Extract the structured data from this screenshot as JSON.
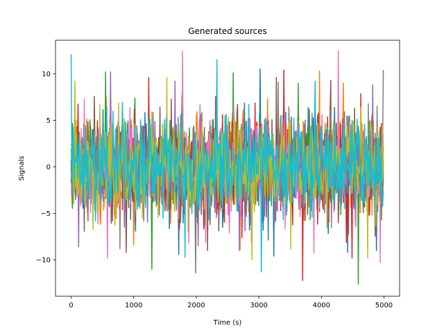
{
  "chart_data": {
    "type": "line",
    "title": "Generated sources",
    "xlabel": "Time (s)",
    "ylabel": "Signals",
    "xlim": [
      -250,
      5250
    ],
    "ylim": [
      -13.9,
      13.6
    ],
    "x_ticks": [
      0,
      1000,
      2000,
      3000,
      4000,
      5000
    ],
    "x_tick_labels": [
      "0",
      "1000",
      "2000",
      "3000",
      "4000",
      "5000"
    ],
    "y_ticks": [
      -10,
      -5,
      0,
      5,
      10
    ],
    "y_tick_labels": [
      "−10",
      "−5",
      "0",
      "5",
      "10"
    ],
    "grid": false,
    "legend": "none",
    "n_points": 5000,
    "series": [
      {
        "color": "#1f77b4",
        "std": 2.5,
        "peaks": [
          [
            3020,
            10.5
          ],
          [
            1720,
            -9.4
          ],
          [
            3240,
            -9.6
          ],
          [
            4420,
            -9.2
          ],
          [
            4880,
            -9.0
          ]
        ]
      },
      {
        "color": "#ff7f0e",
        "std": 2.4,
        "peaks": [
          [
            3970,
            10.3
          ],
          [
            4350,
            9.0
          ],
          [
            1000,
            -8.4
          ],
          [
            2700,
            -8.9
          ]
        ]
      },
      {
        "color": "#2ca02c",
        "std": 2.5,
        "peaks": [
          [
            4590,
            -12.6
          ],
          [
            1290,
            -11.0
          ],
          [
            2590,
            10.1
          ],
          [
            550,
            10.2
          ],
          [
            3630,
            9.0
          ]
        ]
      },
      {
        "color": "#d62728",
        "std": 2.6,
        "peaks": [
          [
            3700,
            -12.2
          ],
          [
            3400,
            10.4
          ],
          [
            4490,
            -9.8
          ],
          [
            1240,
            9.6
          ],
          [
            1990,
            -9.3
          ]
        ]
      },
      {
        "color": "#9467bd",
        "std": 2.4,
        "peaks": [
          [
            630,
            10.2
          ],
          [
            1660,
            9.2
          ],
          [
            2690,
            -9.0
          ],
          [
            4820,
            8.8
          ],
          [
            120,
            -8.6
          ]
        ]
      },
      {
        "color": "#8c564b",
        "std": 2.5,
        "peaks": [
          [
            880,
            -9.2
          ],
          [
            3280,
            9.6
          ],
          [
            2180,
            -9.0
          ],
          [
            4150,
            9.3
          ]
        ]
      },
      {
        "color": "#e377c2",
        "std": 2.6,
        "peaks": [
          [
            4270,
            12.5
          ],
          [
            1780,
            12.4
          ],
          [
            580,
            -9.8
          ],
          [
            4940,
            -10.3
          ],
          [
            3880,
            -9.3
          ]
        ]
      },
      {
        "color": "#7f7f7f",
        "std": 2.4,
        "peaks": [
          [
            1990,
            -11.4
          ],
          [
            4990,
            10.4
          ],
          [
            3310,
            9.1
          ],
          [
            780,
            -8.8
          ]
        ]
      },
      {
        "color": "#bcbd22",
        "std": 2.5,
        "peaks": [
          [
            60,
            9.2
          ],
          [
            2890,
            -10.0
          ],
          [
            1530,
            9.6
          ],
          [
            4740,
            -9.8
          ],
          [
            3510,
            -8.8
          ]
        ]
      },
      {
        "color": "#17becf",
        "std": 2.5,
        "peaks": [
          [
            0,
            12.1
          ],
          [
            2330,
            11.5
          ],
          [
            3040,
            -11.3
          ],
          [
            1820,
            -9.7
          ],
          [
            3900,
            9.2
          ]
        ]
      }
    ]
  }
}
